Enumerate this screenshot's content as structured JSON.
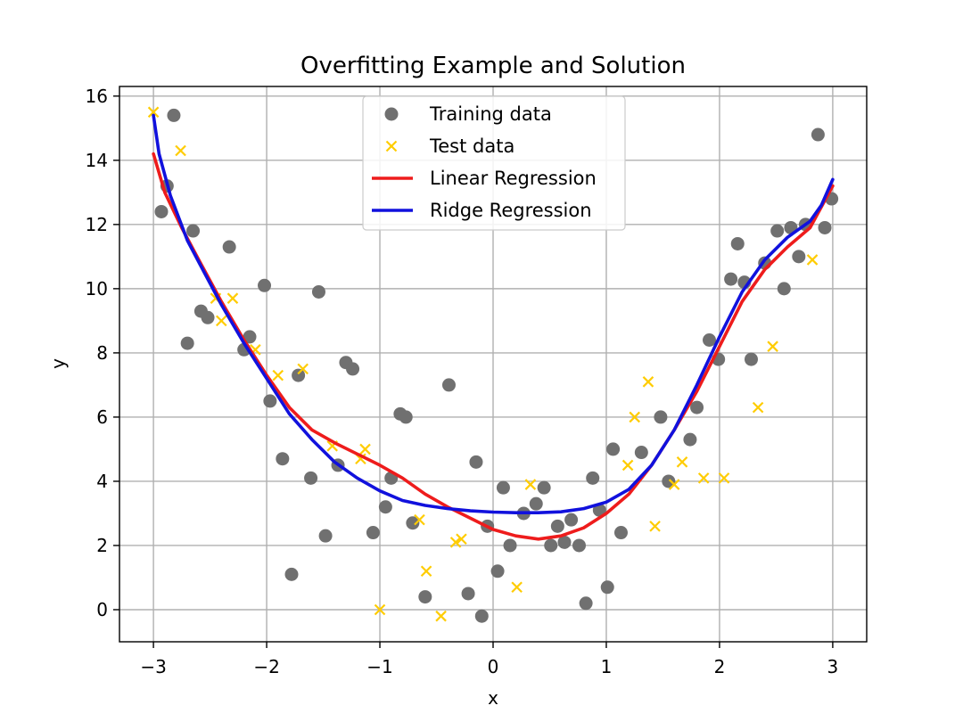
{
  "chart_data": {
    "type": "scatter",
    "title": "Overfitting Example and Solution",
    "xlabel": "x",
    "ylabel": "y",
    "xlim": [
      -3.3,
      3.3
    ],
    "ylim": [
      -1.0,
      16.3
    ],
    "grid": true,
    "legend_position": "top-center",
    "x_ticks": [
      {
        "value": -3,
        "label": "−3"
      },
      {
        "value": -2,
        "label": "−2"
      },
      {
        "value": -1,
        "label": "−1"
      },
      {
        "value": 0,
        "label": "0"
      },
      {
        "value": 1,
        "label": "1"
      },
      {
        "value": 2,
        "label": "2"
      },
      {
        "value": 3,
        "label": "3"
      }
    ],
    "y_ticks": [
      {
        "value": 0,
        "label": "0"
      },
      {
        "value": 2,
        "label": "2"
      },
      {
        "value": 4,
        "label": "4"
      },
      {
        "value": 6,
        "label": "6"
      },
      {
        "value": 8,
        "label": "8"
      },
      {
        "value": 10,
        "label": "10"
      },
      {
        "value": 12,
        "label": "12"
      },
      {
        "value": 14,
        "label": "14"
      },
      {
        "value": 16,
        "label": "16"
      }
    ],
    "series": [
      {
        "name": "Training data",
        "kind": "scatter",
        "marker": "circle",
        "color": "#707070",
        "points": [
          [
            -2.82,
            15.4
          ],
          [
            -2.88,
            13.2
          ],
          [
            -2.93,
            12.4
          ],
          [
            -2.65,
            11.8
          ],
          [
            -2.33,
            11.3
          ],
          [
            -2.7,
            8.3
          ],
          [
            -2.58,
            9.3
          ],
          [
            -2.52,
            9.1
          ],
          [
            -2.2,
            8.1
          ],
          [
            -2.15,
            8.5
          ],
          [
            -2.02,
            10.1
          ],
          [
            -1.97,
            6.5
          ],
          [
            -1.86,
            4.7
          ],
          [
            -1.72,
            7.3
          ],
          [
            -1.61,
            4.1
          ],
          [
            -1.54,
            9.9
          ],
          [
            -1.48,
            2.3
          ],
          [
            -1.37,
            4.5
          ],
          [
            -1.3,
            7.7
          ],
          [
            -1.24,
            7.5
          ],
          [
            -1.78,
            1.1
          ],
          [
            -1.06,
            2.4
          ],
          [
            -0.95,
            3.2
          ],
          [
            -0.9,
            4.1
          ],
          [
            -0.82,
            6.1
          ],
          [
            -0.77,
            6.0
          ],
          [
            -0.71,
            2.7
          ],
          [
            -0.39,
            7.0
          ],
          [
            -0.6,
            0.4
          ],
          [
            -0.22,
            0.5
          ],
          [
            -0.15,
            4.6
          ],
          [
            -0.1,
            -0.2
          ],
          [
            -0.05,
            2.6
          ],
          [
            0.04,
            1.2
          ],
          [
            0.09,
            3.8
          ],
          [
            0.15,
            2.0
          ],
          [
            0.27,
            3.0
          ],
          [
            0.38,
            3.3
          ],
          [
            0.45,
            3.8
          ],
          [
            0.51,
            2.0
          ],
          [
            0.57,
            2.6
          ],
          [
            0.63,
            2.1
          ],
          [
            0.69,
            2.8
          ],
          [
            0.76,
            2.0
          ],
          [
            0.82,
            0.2
          ],
          [
            0.88,
            4.1
          ],
          [
            0.94,
            3.1
          ],
          [
            1.01,
            0.7
          ],
          [
            1.06,
            5.0
          ],
          [
            1.13,
            2.4
          ],
          [
            1.31,
            4.9
          ],
          [
            1.48,
            6.0
          ],
          [
            1.55,
            4.0
          ],
          [
            1.74,
            5.3
          ],
          [
            1.8,
            6.3
          ],
          [
            1.91,
            8.4
          ],
          [
            1.99,
            7.8
          ],
          [
            2.1,
            10.3
          ],
          [
            2.16,
            11.4
          ],
          [
            2.22,
            10.2
          ],
          [
            2.28,
            7.8
          ],
          [
            2.4,
            10.8
          ],
          [
            2.51,
            11.8
          ],
          [
            2.57,
            10.0
          ],
          [
            2.63,
            11.9
          ],
          [
            2.7,
            11.0
          ],
          [
            2.76,
            12.0
          ],
          [
            2.87,
            14.8
          ],
          [
            2.93,
            11.9
          ],
          [
            2.99,
            12.8
          ]
        ]
      },
      {
        "name": "Test data",
        "kind": "scatter",
        "marker": "x",
        "color": "#ffcc00",
        "points": [
          [
            -3.0,
            15.5
          ],
          [
            -2.76,
            14.3
          ],
          [
            -2.45,
            9.7
          ],
          [
            -2.4,
            9.0
          ],
          [
            -2.3,
            9.7
          ],
          [
            -2.1,
            8.1
          ],
          [
            -1.9,
            7.3
          ],
          [
            -1.68,
            7.5
          ],
          [
            -1.42,
            5.1
          ],
          [
            -1.17,
            4.7
          ],
          [
            -1.13,
            5.0
          ],
          [
            -1.0,
            0.0
          ],
          [
            -0.65,
            2.8
          ],
          [
            -0.59,
            1.2
          ],
          [
            -0.46,
            -0.2
          ],
          [
            -0.33,
            2.1
          ],
          [
            -0.28,
            2.2
          ],
          [
            0.21,
            0.7
          ],
          [
            0.33,
            3.9
          ],
          [
            1.19,
            4.5
          ],
          [
            1.25,
            6.0
          ],
          [
            1.37,
            7.1
          ],
          [
            1.43,
            2.6
          ],
          [
            1.6,
            3.9
          ],
          [
            1.67,
            4.6
          ],
          [
            1.86,
            4.1
          ],
          [
            2.04,
            4.1
          ],
          [
            2.34,
            6.3
          ],
          [
            2.47,
            8.2
          ],
          [
            2.82,
            10.9
          ]
        ]
      },
      {
        "name": "Linear Regression",
        "kind": "line",
        "color": "#ee1c1c",
        "points": [
          [
            -3.0,
            14.2
          ],
          [
            -2.9,
            13.0
          ],
          [
            -2.75,
            11.9
          ],
          [
            -2.6,
            10.9
          ],
          [
            -2.4,
            9.6
          ],
          [
            -2.2,
            8.4
          ],
          [
            -2.0,
            7.3
          ],
          [
            -1.8,
            6.3
          ],
          [
            -1.6,
            5.6
          ],
          [
            -1.4,
            5.2
          ],
          [
            -1.2,
            4.85
          ],
          [
            -1.0,
            4.5
          ],
          [
            -0.8,
            4.1
          ],
          [
            -0.6,
            3.6
          ],
          [
            -0.4,
            3.2
          ],
          [
            -0.2,
            2.85
          ],
          [
            0.0,
            2.5
          ],
          [
            0.2,
            2.3
          ],
          [
            0.4,
            2.2
          ],
          [
            0.6,
            2.3
          ],
          [
            0.8,
            2.55
          ],
          [
            1.0,
            3.0
          ],
          [
            1.2,
            3.6
          ],
          [
            1.4,
            4.5
          ],
          [
            1.6,
            5.6
          ],
          [
            1.8,
            6.8
          ],
          [
            2.0,
            8.2
          ],
          [
            2.2,
            9.6
          ],
          [
            2.4,
            10.6
          ],
          [
            2.6,
            11.3
          ],
          [
            2.8,
            11.9
          ],
          [
            3.0,
            13.2
          ]
        ]
      },
      {
        "name": "Ridge Regression",
        "kind": "line",
        "color": "#1111dd",
        "points": [
          [
            -3.0,
            15.4
          ],
          [
            -2.95,
            14.2
          ],
          [
            -2.85,
            12.9
          ],
          [
            -2.7,
            11.5
          ],
          [
            -2.55,
            10.5
          ],
          [
            -2.4,
            9.5
          ],
          [
            -2.2,
            8.3
          ],
          [
            -2.0,
            7.2
          ],
          [
            -1.8,
            6.1
          ],
          [
            -1.6,
            5.3
          ],
          [
            -1.4,
            4.6
          ],
          [
            -1.2,
            4.1
          ],
          [
            -1.0,
            3.7
          ],
          [
            -0.8,
            3.4
          ],
          [
            -0.6,
            3.25
          ],
          [
            -0.4,
            3.15
          ],
          [
            -0.2,
            3.08
          ],
          [
            0.0,
            3.04
          ],
          [
            0.2,
            3.02
          ],
          [
            0.4,
            3.02
          ],
          [
            0.6,
            3.05
          ],
          [
            0.8,
            3.15
          ],
          [
            1.0,
            3.35
          ],
          [
            1.2,
            3.75
          ],
          [
            1.4,
            4.5
          ],
          [
            1.6,
            5.6
          ],
          [
            1.8,
            7.0
          ],
          [
            2.0,
            8.5
          ],
          [
            2.2,
            9.9
          ],
          [
            2.4,
            10.9
          ],
          [
            2.6,
            11.6
          ],
          [
            2.8,
            12.1
          ],
          [
            2.9,
            12.6
          ],
          [
            3.0,
            13.4
          ]
        ]
      }
    ]
  }
}
